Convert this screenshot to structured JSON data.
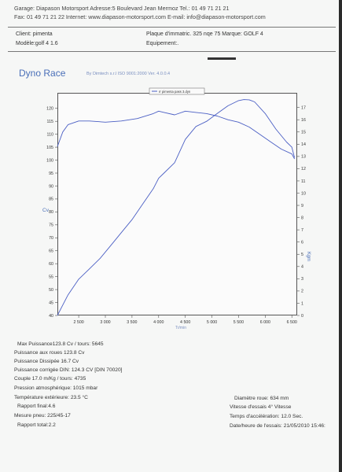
{
  "header": {
    "line1": "Garage: Diapason Motorsport   Adresse:5 Boulevard Jean Mermoz   Tel.: 01 49 71 21 21",
    "line2": "Fax: 01 49 71 21 22   Internet: www.diapason-motorsport.com   E-mail: info@diapason-motorsport.com"
  },
  "info": {
    "client": "Client:   pimenta",
    "modele": "Modèle:golf 4 1.6",
    "plaque": "Plaque d'immatric. 325 nqe 75     Marque: GOLF 4",
    "equipement": "Equipement:."
  },
  "app": {
    "title": "Dyno Race",
    "byline": "By Dimtech s.r.l  ISO 9001:2000  Ver. 4.0.0.4"
  },
  "chart_data": {
    "type": "line",
    "legend": "rr pimenta pass 3.dyn",
    "xlabel": "Tr/min",
    "ylabel": "Cv",
    "y2label": "Kgm",
    "xlim": [
      2100,
      6600
    ],
    "ylim": [
      40,
      125
    ],
    "y2lim": [
      0,
      17.5
    ],
    "x_ticks": [
      "2 500",
      "3 000",
      "3 500",
      "4 000",
      "4 500",
      "5 000",
      "5 500",
      "6 000",
      "6 500"
    ],
    "y_ticks": [
      40,
      45,
      50,
      55,
      60,
      65,
      70,
      75,
      80,
      85,
      90,
      95,
      100,
      105,
      110,
      115,
      120
    ],
    "y2_ticks": [
      0,
      1,
      2,
      3,
      4,
      5,
      6,
      7,
      8,
      9,
      10,
      11,
      12,
      13,
      14,
      15,
      16,
      17
    ],
    "series": [
      {
        "axis": "left",
        "x": [
          2100,
          2200,
          2300,
          2500,
          2700,
          2900,
          3100,
          3300,
          3500,
          3700,
          3900,
          4000,
          4100,
          4300,
          4500,
          4700,
          4900,
          5100,
          5300,
          5500,
          5600,
          5700,
          5800,
          6000,
          6200,
          6400,
          6500,
          6550
        ],
        "values": [
          40,
          44,
          48,
          54,
          58,
          62,
          67,
          72,
          77,
          83,
          89,
          93,
          95,
          99,
          108,
          113,
          115,
          118,
          121,
          123,
          123.4,
          123.3,
          122.5,
          118,
          112,
          107,
          105,
          101
        ]
      },
      {
        "axis": "right",
        "x": [
          2100,
          2200,
          2300,
          2500,
          2700,
          3000,
          3300,
          3600,
          3900,
          4000,
          4100,
          4300,
          4500,
          4700,
          4900,
          5100,
          5300,
          5500,
          5700,
          5900,
          6100,
          6300,
          6500,
          6550
        ],
        "values": [
          13.8,
          15.0,
          15.6,
          15.9,
          15.9,
          15.8,
          15.9,
          16.1,
          16.5,
          16.7,
          16.6,
          16.4,
          16.7,
          16.6,
          16.5,
          16.3,
          16.0,
          15.8,
          15.4,
          14.8,
          14.2,
          13.6,
          13.2,
          12.8
        ]
      }
    ]
  },
  "results": {
    "max": "Max   Puissance123.8 Cv / tours: 5645",
    "roues": "Puissance aux roues      123.8 Cv",
    "dissipee": "Puissance Dissipée    16.7 Cv",
    "corrigee": "Puissance corrigée DIN:  124.3 CV  [DIN 70020]",
    "couple": "Couple 17.0  m/Kg / tours: 4735",
    "pression": "Pression atmosphérique:  1015 mbar",
    "temperature": "Température extérieure:   23.5 °C",
    "rapport_final": "Rapport final:4.6",
    "pneu": "Mesure pneu: 225/45-17",
    "rapport_total": "Rapport total:2.2",
    "diametre": "Diamètre roue: 634 mm",
    "vitesse": "Vitesse d'essais  4° Vitesse",
    "acceleration": "Temps d'accélération: 12.0 Sec.",
    "date": "Date/heure de l'essais:    21/05/2010 15:46:"
  },
  "colors": {
    "curve": "#4b5fc4",
    "accent": "#4a6fb8"
  }
}
